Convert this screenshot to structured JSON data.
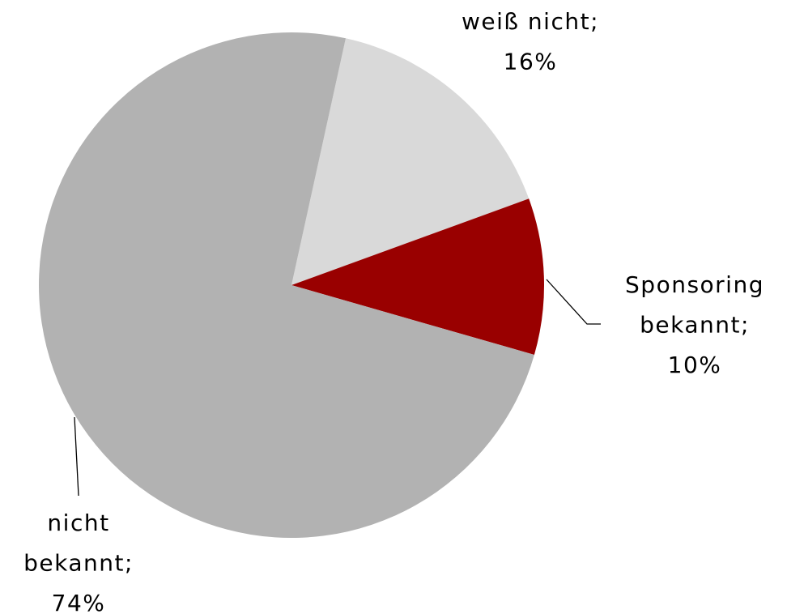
{
  "chart_data": {
    "type": "pie",
    "categories": [
      "weiß nicht;",
      "Sponsoring bekannt;",
      "nicht bekannt;"
    ],
    "values": [
      16,
      10,
      74
    ],
    "value_labels": [
      "16%",
      "10%",
      "74%"
    ],
    "colors": [
      "#d9d9d9",
      "#990000",
      "#b2b2b2"
    ]
  }
}
